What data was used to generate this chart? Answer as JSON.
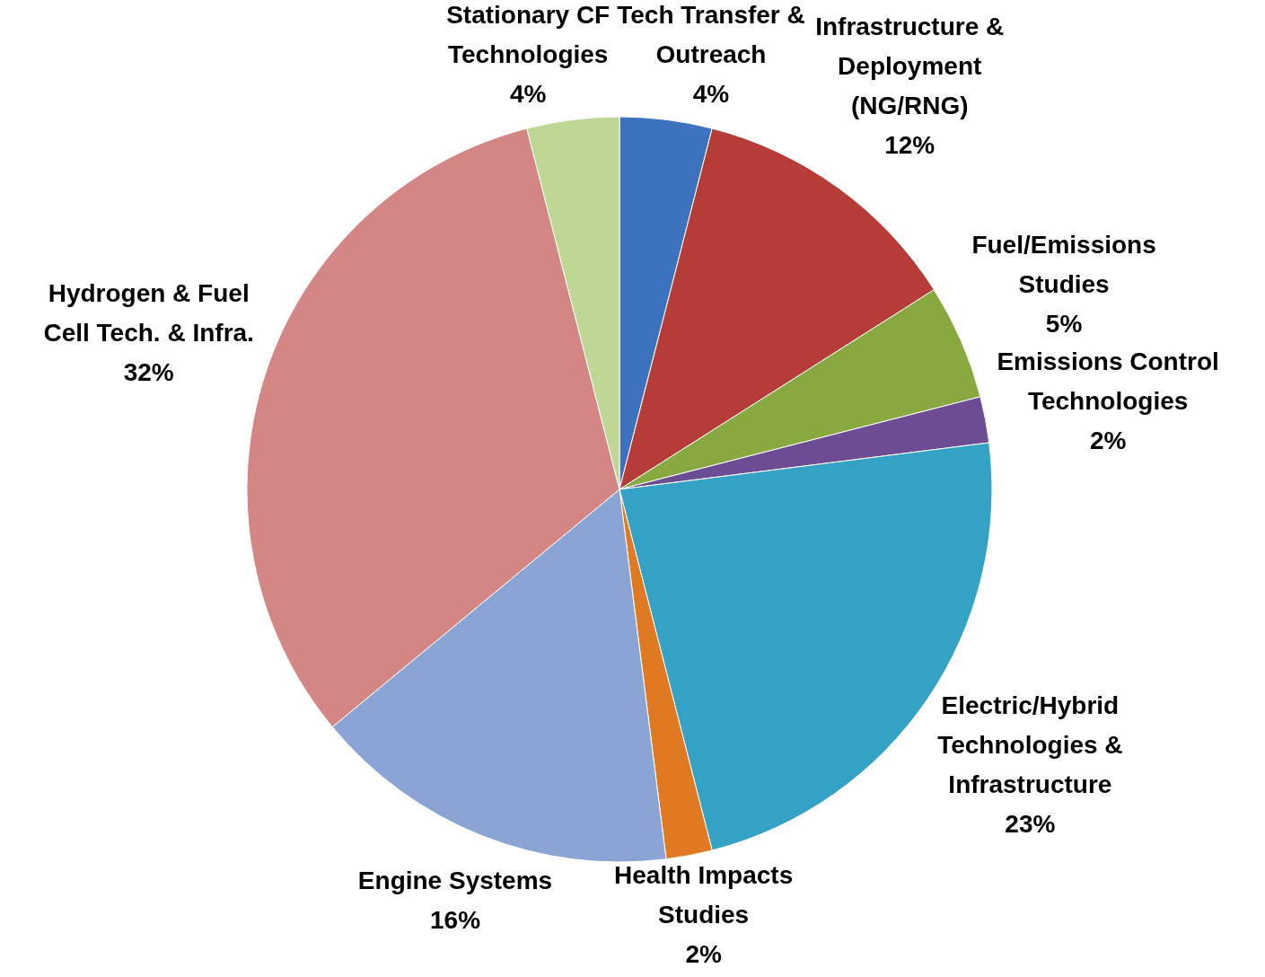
{
  "chart_data": {
    "type": "pie",
    "categories": [
      "Tech Transfer & Outreach",
      "Infrastructure & Deployment (NG/RNG)",
      "Fuel/Emissions Studies",
      "Emissions Control Technologies",
      "Electric/Hybrid Technologies & Infrastructure",
      "Health Impacts Studies",
      "Engine Systems",
      "Hydrogen & Fuel Cell Tech. & Infra.",
      "Stationary CF Technologies"
    ],
    "values": [
      4,
      12,
      5,
      2,
      23,
      2,
      16,
      32,
      4
    ],
    "value_labels": [
      "4%",
      "12%",
      "5%",
      "2%",
      "23%",
      "2%",
      "16%",
      "32%",
      "4%"
    ],
    "colors": [
      "#3d72bf",
      "#b63c38",
      "#88a940",
      "#6c4d94",
      "#33a2c4",
      "#e07a22",
      "#8aa4d4",
      "#d38683",
      "#bfd795"
    ]
  }
}
